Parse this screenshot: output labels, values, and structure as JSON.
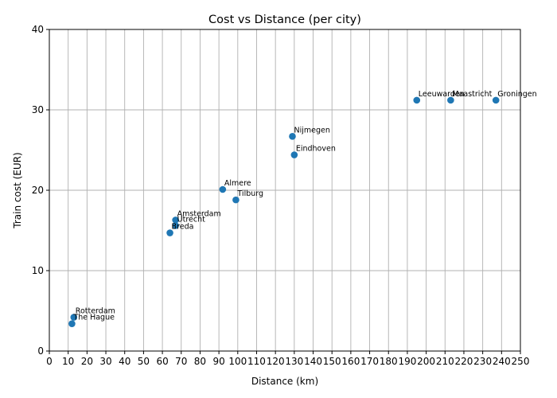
{
  "chart_data": {
    "type": "scatter",
    "title": "Cost vs Distance (per city)",
    "xlabel": "Distance (km)",
    "ylabel": "Train cost (EUR)",
    "xlim": [
      0,
      250
    ],
    "ylim": [
      0,
      40
    ],
    "xticks": [
      0,
      10,
      20,
      30,
      40,
      50,
      60,
      70,
      80,
      90,
      100,
      110,
      120,
      130,
      140,
      150,
      160,
      170,
      180,
      190,
      200,
      210,
      220,
      230,
      240,
      250
    ],
    "yticks": [
      0,
      10,
      20,
      30,
      40
    ],
    "grid": true,
    "marker_color": "#1f77b4",
    "points": [
      {
        "label": "Rotterdam",
        "x": 13,
        "y": 4.2
      },
      {
        "label": "The Hague",
        "x": 12,
        "y": 3.4
      },
      {
        "label": "Amsterdam",
        "x": 67,
        "y": 16.3
      },
      {
        "label": "Utrecht",
        "x": 67,
        "y": 15.6
      },
      {
        "label": "Breda",
        "x": 64,
        "y": 14.7
      },
      {
        "label": "Almere",
        "x": 92,
        "y": 20.1
      },
      {
        "label": "Tilburg",
        "x": 99,
        "y": 18.8
      },
      {
        "label": "Nijmegen",
        "x": 129,
        "y": 26.7
      },
      {
        "label": "Eindhoven",
        "x": 130,
        "y": 24.4
      },
      {
        "label": "Leeuwarden",
        "x": 195,
        "y": 31.2
      },
      {
        "label": "Maastricht",
        "x": 213,
        "y": 31.2
      },
      {
        "label": "Groningen",
        "x": 237,
        "y": 31.2
      }
    ]
  }
}
